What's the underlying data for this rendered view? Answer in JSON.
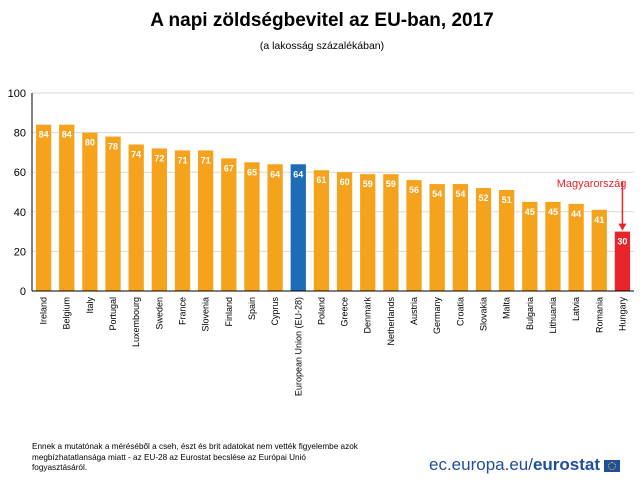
{
  "title": "A napi zöldségbevitel az EU-ban, 2017",
  "subtitle": "(a lakosság százalékában)",
  "footnote": "Ennek a mutatónak a méréséből a cseh, észt és brit adatokat nem vették figyelembe azok megbízhatatlansága miatt - az EU-28 az Eurostat becslése az Európai Unió fogyasztásáról.",
  "logo": {
    "prefix": "ec.europa.eu/",
    "brand": "eurostat"
  },
  "annotation": {
    "text": "Magyarország",
    "target": "Hungary"
  },
  "colors": {
    "default": "#f5a21c",
    "eu": "#1f6cb6",
    "highlight": "#e8232a",
    "annotation": "#e8232a",
    "axis": "#000000",
    "grid": "#d9d9d9"
  },
  "chart_data": {
    "type": "bar",
    "title": "A napi zöldségbevitel az EU-ban, 2017",
    "subtitle": "(a lakosság százalékában)",
    "xlabel": "",
    "ylabel": "",
    "ylim": [
      0,
      100
    ],
    "yticks": [
      0,
      20,
      40,
      60,
      80,
      100
    ],
    "grid": true,
    "categories": [
      "Ireland",
      "Belgium",
      "Italy",
      "Portugal",
      "Luxembourg",
      "Sweden",
      "France",
      "Slovenia",
      "Finland",
      "Spain",
      "Cyprus",
      "European Union (EU-28)",
      "Poland",
      "Greece",
      "Denmark",
      "Netherlands",
      "Austria",
      "Germany",
      "Croatia",
      "Slovakia",
      "Malta",
      "Bulgaria",
      "Lithuania",
      "Latvia",
      "Romania",
      "Hungary"
    ],
    "values": [
      84,
      84,
      80,
      78,
      74,
      72,
      71,
      71,
      67,
      65,
      64,
      64,
      61,
      60,
      59,
      59,
      56,
      54,
      54,
      52,
      51,
      45,
      45,
      44,
      41,
      30
    ],
    "highlight": {
      "European Union (EU-28)": "eu",
      "Hungary": "highlight"
    }
  }
}
